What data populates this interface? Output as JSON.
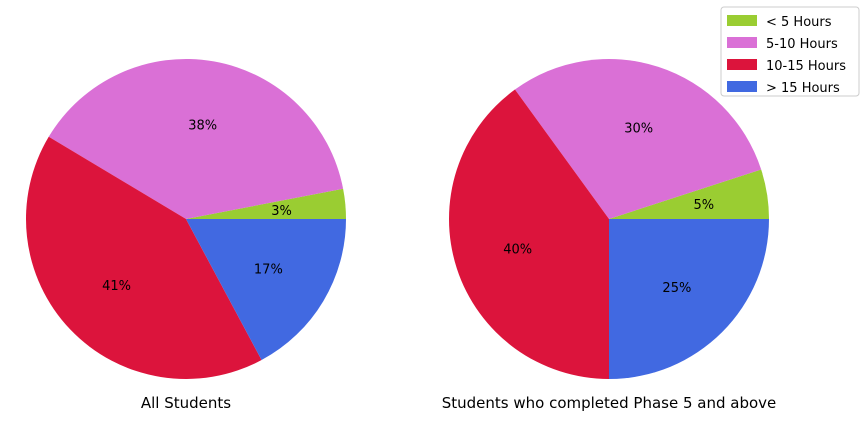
{
  "chart_data": [
    {
      "type": "pie",
      "title": "All Students",
      "categories": [
        "< 5 Hours",
        "5-10 Hours",
        "10-15 Hours",
        "> 15 Hours"
      ],
      "values": [
        3,
        38,
        41,
        17
      ],
      "labels": [
        "3%",
        "38%",
        "41%",
        "17%"
      ]
    },
    {
      "type": "pie",
      "title": "Students who completed Phase 5 and above",
      "categories": [
        "< 5 Hours",
        "5-10 Hours",
        "10-15 Hours",
        "> 15 Hours"
      ],
      "values": [
        5,
        30,
        40,
        25
      ],
      "labels": [
        "5%",
        "30%",
        "40%",
        "25%"
      ]
    }
  ],
  "legend": {
    "placement": "top-right",
    "entries": [
      "< 5 Hours",
      "5-10 Hours",
      "10-15 Hours",
      "> 15 Hours"
    ]
  },
  "colors": {
    "< 5 Hours": "#9ACD32",
    "5-10 Hours": "#DA70D6",
    "10-15 Hours": "#DC143C",
    "> 15 Hours": "#4169E1"
  }
}
